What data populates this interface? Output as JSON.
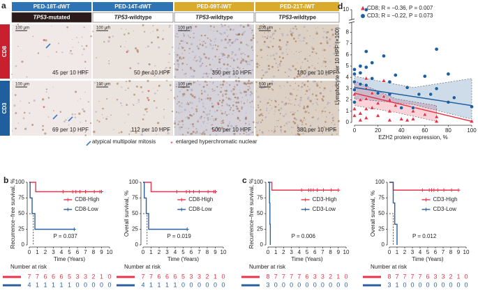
{
  "panel_a": {
    "label": "a",
    "columns": [
      {
        "cohort": "PED-18T-dWT",
        "gene": "TP53",
        "status": "-mutated"
      },
      {
        "cohort": "PED-14T-dWT",
        "gene": "TP53",
        "status": "-wildtype"
      },
      {
        "cohort": "PED-09T-iWT",
        "gene": "TP53",
        "status": "-wildtype"
      },
      {
        "cohort": "PED-21T-iWT",
        "gene": "TP53",
        "status": "-wildtype"
      }
    ],
    "rows": [
      {
        "label": "CD8",
        "counts": [
          "45 per 10 HPF",
          "50 per 10 HPF",
          "350 per 10 HPF",
          "180 per 10 HPF"
        ]
      },
      {
        "label": "CD3",
        "counts": [
          "69 per 10 HPF",
          "112 per 10 HPF",
          "500 per 10 HPF",
          "380 per 10 HPF"
        ]
      }
    ],
    "scale_bar": "100 μm",
    "legend": [
      "atypical multipolar mitosis",
      "enlarged hyperchromatic nuclear"
    ]
  },
  "chart_data": [
    {
      "type": "scatter",
      "label": "d",
      "xlabel": "EZH2 protein expression, %",
      "ylabel": "Lymphocyte per 10 HPF (×100)",
      "xlim": [
        0,
        100
      ],
      "xticks": [
        0,
        20,
        40,
        60,
        80,
        100
      ],
      "ylim": [
        0,
        10
      ],
      "yticks": [
        0,
        1,
        2,
        3,
        4,
        5,
        6,
        7,
        8,
        10
      ],
      "series": [
        {
          "name": "CD8; R = −0.36, P = 0.007",
          "color": "#e8344a",
          "marker": "triangle",
          "x": [
            0,
            0,
            0,
            5,
            5,
            5,
            10,
            10,
            10,
            10,
            10,
            15,
            15,
            20,
            20,
            25,
            25,
            30,
            30,
            30,
            35,
            40,
            40,
            45,
            50,
            50,
            60,
            70,
            70,
            100
          ],
          "values": [
            1.2,
            0.6,
            2.5,
            2.0,
            0.8,
            0.2,
            3.9,
            3.0,
            2.1,
            1.2,
            0.4,
            2.6,
            1.3,
            1.7,
            0.6,
            3.7,
            2.3,
            2.0,
            1.0,
            0.2,
            1.5,
            0.3,
            1.3,
            0.2,
            0.3,
            1.0,
            0.7,
            0.1,
            0.5,
            0.1
          ],
          "fit_x": [
            0,
            100
          ],
          "fit_y": [
            2.6,
            0.1
          ],
          "ci_x": [
            0,
            35,
            70
          ],
          "ci_lower": [
            1.5,
            0.9,
            0.1
          ],
          "ci_upper": [
            3.7,
            2.1,
            1.5
          ]
        },
        {
          "name": "CD3; R = −0.22, P = 0.073",
          "color": "#1f5fa0",
          "marker": "circle",
          "x": [
            0,
            0,
            0,
            0,
            0,
            5,
            5,
            5,
            10,
            10,
            10,
            10,
            15,
            15,
            20,
            25,
            30,
            30,
            35,
            40,
            45,
            50,
            55,
            60,
            65,
            70,
            70,
            80,
            80,
            85,
            100
          ],
          "values": [
            4.7,
            4.3,
            3.6,
            2.9,
            1.8,
            5.0,
            4.4,
            3.4,
            10.0,
            6.3,
            4.9,
            3.3,
            3.9,
            5.3,
            2.6,
            5.9,
            3.6,
            2.5,
            4.2,
            1.3,
            3.1,
            1.3,
            2.5,
            4.1,
            2.5,
            6.5,
            3.0,
            4.3,
            1.8,
            2.2,
            1.4
          ],
          "fit_x": [
            0,
            100
          ],
          "fit_y": [
            3.1,
            1.5
          ],
          "ci_x": [
            0,
            50,
            100
          ],
          "ci_lower": [
            2.1,
            1.6,
            0.3
          ],
          "ci_upper": [
            4.1,
            3.1,
            3.9
          ]
        }
      ]
    },
    {
      "type": "km",
      "label": "b",
      "ylabel": "Recurrence−free survival, %",
      "xlabel": "Time (Years)",
      "xlim": [
        0,
        10
      ],
      "xticks": [
        0,
        1,
        2,
        3,
        4,
        5,
        6,
        7,
        8,
        9,
        10
      ],
      "ylim": [
        0,
        100
      ],
      "yticks": [
        0,
        25,
        50,
        75,
        100
      ],
      "annotation": "P = 0.037",
      "risk_title": "Number at risk",
      "median": {
        "x": 0.5,
        "y": 50
      },
      "series": [
        {
          "name": "CD8-High",
          "color": "#e8344a",
          "x": [
            0,
            0.8,
            0.8,
            9
          ],
          "values": [
            100,
            100,
            85,
            85
          ],
          "censor_x": [
            4.2,
            5.4,
            5.8,
            6.3,
            7,
            8.1,
            8.8,
            9
          ],
          "censor_y": [
            85,
            85,
            85,
            85,
            85,
            85,
            85,
            85
          ],
          "at_risk": [
            7,
            7,
            6,
            6,
            6,
            5,
            3,
            3,
            2,
            1,
            0
          ]
        },
        {
          "name": "CD8-Low",
          "color": "#2b5f9e",
          "x": [
            0,
            0.1,
            0.1,
            0.35,
            0.35,
            0.7,
            0.7,
            5.6
          ],
          "values": [
            100,
            100,
            75,
            75,
            50,
            50,
            25,
            25
          ],
          "censor_x": [
            5.6
          ],
          "censor_y": [
            25
          ],
          "at_risk": [
            4,
            1,
            1,
            1,
            1,
            1,
            0,
            0,
            0,
            0,
            0
          ]
        }
      ]
    },
    {
      "type": "km",
      "ylabel": "Overall survival, %",
      "xlabel": "Time (Years)",
      "xlim": [
        0,
        10
      ],
      "xticks": [
        0,
        1,
        2,
        3,
        4,
        5,
        6,
        7,
        8,
        9,
        10
      ],
      "ylim": [
        0,
        100
      ],
      "yticks": [
        0,
        25,
        50,
        75,
        100
      ],
      "annotation": "P = 0.019",
      "risk_title": "Number at risk",
      "median": {
        "x": 0.5,
        "y": 50
      },
      "series": [
        {
          "name": "CD8-High",
          "color": "#e8344a",
          "x": [
            0,
            1,
            1,
            9
          ],
          "values": [
            100,
            100,
            85,
            85
          ],
          "censor_x": [
            4.2,
            5.4,
            5.8,
            6.3,
            7,
            8.1,
            8.8,
            9
          ],
          "censor_y": [
            85,
            85,
            85,
            85,
            85,
            85,
            85,
            85
          ],
          "at_risk": [
            7,
            7,
            6,
            6,
            6,
            5,
            3,
            3,
            2,
            1,
            0
          ]
        },
        {
          "name": "CD8-Low",
          "color": "#2b5f9e",
          "x": [
            0,
            0.15,
            0.15,
            0.4,
            0.4,
            0.7,
            0.7,
            5.5
          ],
          "values": [
            100,
            100,
            75,
            75,
            50,
            50,
            25,
            25
          ],
          "censor_x": [
            5.5
          ],
          "censor_y": [
            25
          ],
          "at_risk": [
            4,
            1,
            1,
            1,
            1,
            0,
            0,
            0,
            0,
            0,
            0
          ]
        }
      ]
    },
    {
      "type": "km",
      "label": "c",
      "ylabel": "Recurrence−free survival, %",
      "xlabel": "Time (Years)",
      "xlim": [
        0,
        10
      ],
      "xticks": [
        0,
        1,
        2,
        3,
        4,
        5,
        6,
        7,
        8,
        9,
        10
      ],
      "ylim": [
        0,
        100
      ],
      "yticks": [
        0,
        25,
        50,
        75,
        100
      ],
      "annotation": "P = 0.006",
      "risk_title": "Number at risk",
      "series": [
        {
          "name": "CD3-High",
          "color": "#e8344a",
          "x": [
            0,
            0.5,
            0.5,
            9
          ],
          "values": [
            100,
            100,
            87.5,
            87.5
          ],
          "censor_x": [
            4.3,
            5.2,
            5.5,
            5.8,
            6.3,
            7.1,
            8.1,
            9
          ],
          "censor_y": [
            87.5,
            87.5,
            87.5,
            87.5,
            87.5,
            87.5,
            87.5,
            87.5
          ],
          "at_risk": [
            8,
            7,
            7,
            7,
            7,
            6,
            3,
            3,
            2,
            1,
            0
          ]
        },
        {
          "name": "CD3-Low",
          "color": "#2b5f9e",
          "x": [
            0,
            0.2,
            0.2,
            0.25,
            0.25,
            0.3,
            0.3
          ],
          "values": [
            100,
            100,
            67,
            67,
            33,
            33,
            0
          ],
          "censor_x": [],
          "censor_y": [],
          "at_risk": [
            3,
            0,
            0,
            0,
            0,
            0,
            0,
            0,
            0,
            0,
            0
          ]
        }
      ]
    },
    {
      "type": "km",
      "ylabel": "Overall survival, %",
      "xlabel": "Time (Years)",
      "xlim": [
        0,
        10
      ],
      "xticks": [
        0,
        1,
        2,
        3,
        4,
        5,
        6,
        7,
        8,
        9,
        10
      ],
      "ylim": [
        0,
        100
      ],
      "yticks": [
        0,
        25,
        50,
        75,
        100
      ],
      "annotation": "P = 0.012",
      "risk_title": "Number at risk",
      "median": {
        "x": 0.5,
        "y": 50
      },
      "series": [
        {
          "name": "CD3-High",
          "color": "#e8344a",
          "x": [
            0,
            0.5,
            0.5,
            9
          ],
          "values": [
            100,
            100,
            87.5,
            87.5
          ],
          "censor_x": [
            4.3,
            5.2,
            5.5,
            5.8,
            6.3,
            7.1,
            8.1,
            9
          ],
          "censor_y": [
            87.5,
            87.5,
            87.5,
            87.5,
            87.5,
            87.5,
            87.5,
            87.5
          ],
          "at_risk": [
            8,
            7,
            7,
            7,
            7,
            6,
            3,
            3,
            2,
            1,
            0
          ]
        },
        {
          "name": "CD3-Low",
          "color": "#2b5f9e",
          "x": [
            0,
            0.5,
            0.5,
            0.7,
            0.7,
            1,
            1
          ],
          "values": [
            100,
            100,
            67,
            67,
            33,
            33,
            0
          ],
          "censor_x": [],
          "censor_y": [],
          "at_risk": [
            3,
            1,
            0,
            0,
            0,
            0,
            0,
            0,
            0,
            0,
            0
          ]
        }
      ]
    }
  ]
}
